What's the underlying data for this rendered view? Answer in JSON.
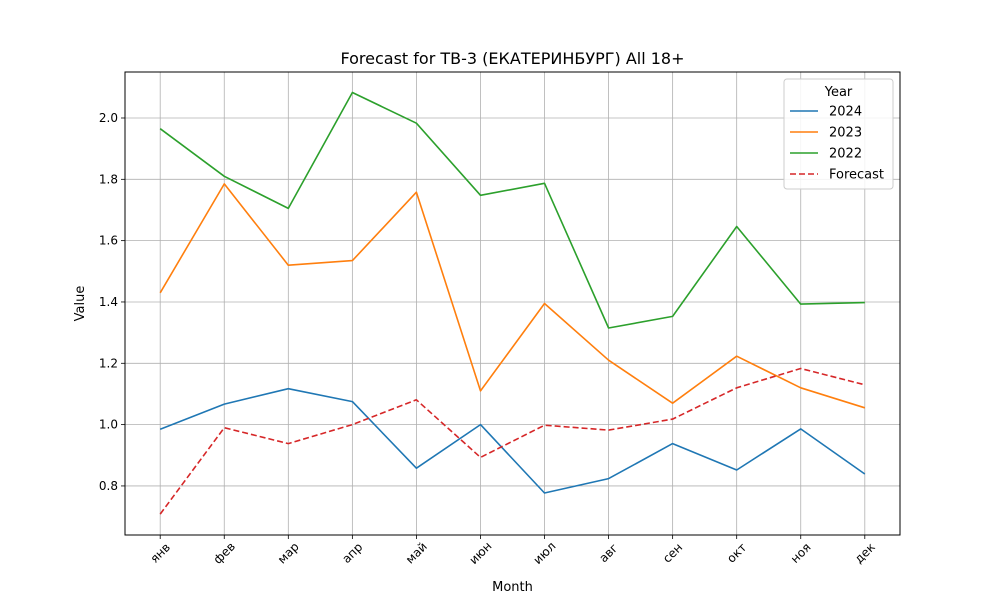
{
  "chart_data": {
    "type": "line",
    "title": "Forecast for ТВ-3 (ЕКАТЕРИНБУРГ) All 18+",
    "xlabel": "Month",
    "ylabel": "Value",
    "categories": [
      "янв",
      "фев",
      "мар",
      "апр",
      "май",
      "июн",
      "июл",
      "авг",
      "сен",
      "окт",
      "ноя",
      "дек"
    ],
    "ylim": [
      0.64,
      2.15
    ],
    "yticks": [
      0.8,
      1.0,
      1.2,
      1.4,
      1.6,
      1.8,
      2.0
    ],
    "ytick_labels": [
      "0.8",
      "1.0",
      "1.2",
      "1.4",
      "1.6",
      "1.8",
      "2.0"
    ],
    "grid": true,
    "legend": {
      "title": "Year",
      "placement": "top-right"
    },
    "series": [
      {
        "name": "2024",
        "color": "#1f77b4",
        "dashed": false,
        "values": [
          0.985,
          1.067,
          1.117,
          1.075,
          0.858,
          1.0,
          0.777,
          0.824,
          0.938,
          0.852,
          0.986,
          0.839
        ]
      },
      {
        "name": "2023",
        "color": "#ff7f0e",
        "dashed": false,
        "values": [
          1.43,
          1.785,
          1.52,
          1.535,
          1.758,
          1.11,
          1.395,
          1.21,
          1.07,
          1.223,
          1.12,
          1.055
        ]
      },
      {
        "name": "2022",
        "color": "#2ca02c",
        "dashed": false,
        "values": [
          1.965,
          1.81,
          1.705,
          2.083,
          1.983,
          1.748,
          1.787,
          1.315,
          1.353,
          1.646,
          1.393,
          1.398
        ]
      },
      {
        "name": "Forecast",
        "color": "#d62728",
        "dashed": true,
        "values": [
          0.708,
          0.99,
          0.938,
          1.0,
          1.081,
          0.893,
          0.998,
          0.982,
          1.018,
          1.12,
          1.183,
          1.13
        ]
      }
    ]
  }
}
